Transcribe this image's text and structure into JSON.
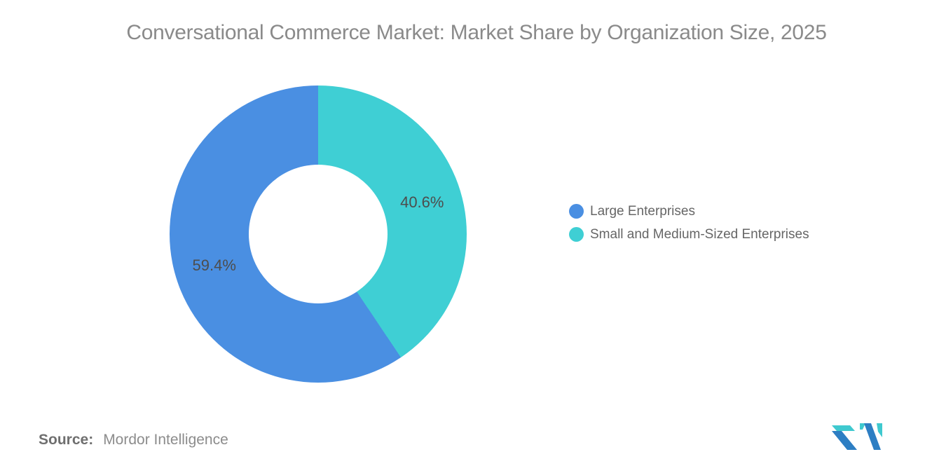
{
  "title": {
    "text": "Conversational Commerce Market: Market Share by Organization Size, 2025",
    "color": "#8a8a8a"
  },
  "chart_data": {
    "type": "pie",
    "subtype": "donut",
    "title": "Conversational Commerce Market: Market Share by Organization Size, 2025",
    "categories": [
      "Large Enterprises",
      "Small and Medium-Sized Enterprises"
    ],
    "values": [
      59.4,
      40.6
    ],
    "unit": "%",
    "data_labels": [
      "59.4%",
      "40.6%"
    ],
    "colors": [
      "#4A8FE2",
      "#3FCFD4"
    ],
    "start_angle_deg": 0,
    "first_slice_clockwise_from_top": "Small and Medium-Sized Enterprises",
    "hole_ratio": 0.47,
    "legend_position": "right",
    "background": "#ffffff"
  },
  "legend": {
    "items": [
      {
        "label": "Large Enterprises",
        "color": "#4A8FE2"
      },
      {
        "label": "Small and Medium-Sized Enterprises",
        "color": "#3FCFD4"
      }
    ]
  },
  "source": {
    "label": "Source:",
    "value": "Mordor Intelligence"
  },
  "logo": {
    "name": "mordor-intelligence-logo",
    "blue": "#2D7EC3",
    "teal": "#3FC9CF"
  }
}
